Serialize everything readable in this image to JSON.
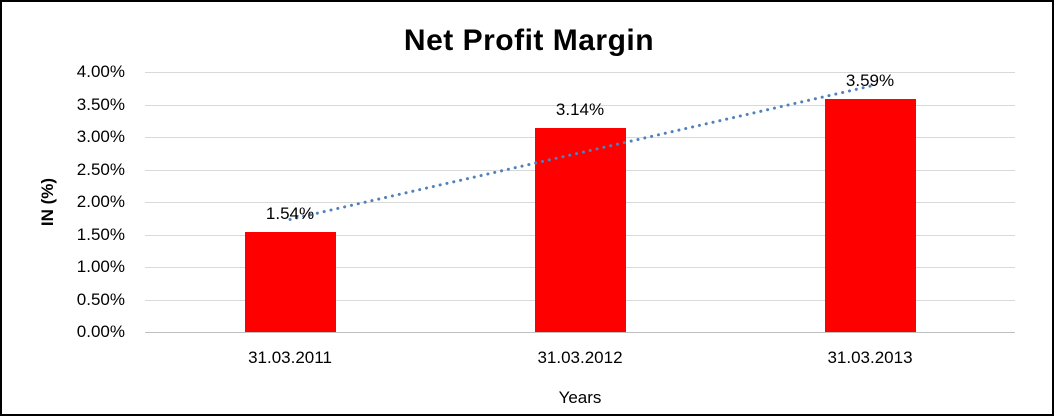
{
  "chart_data": {
    "type": "bar",
    "title": "Net Profit Margin",
    "xlabel": "Years",
    "ylabel": "IN (%)",
    "categories": [
      "31.03.2011",
      "31.03.2012",
      "31.03.2013"
    ],
    "series": [
      {
        "name": "Net Profit Margin",
        "values": [
          1.54,
          3.14,
          3.59
        ]
      }
    ],
    "data_labels": [
      "1.54%",
      "3.14%",
      "3.59%"
    ],
    "ylim": [
      0,
      4
    ],
    "ytick_step": 0.5,
    "ytick_labels": [
      "0.00%",
      "0.50%",
      "1.00%",
      "1.50%",
      "2.00%",
      "2.50%",
      "3.00%",
      "3.50%",
      "4.00%"
    ],
    "grid": true,
    "legend": "none",
    "trendline": {
      "type": "linear",
      "style": "dotted"
    }
  },
  "colors": {
    "bar": "#ff0000",
    "trendline": "#4f81bd",
    "gridline": "#d9d9d9",
    "axis_line": "#bfbfbf",
    "text": "#000000",
    "frame_border": "#000000",
    "background": "#ffffff"
  }
}
